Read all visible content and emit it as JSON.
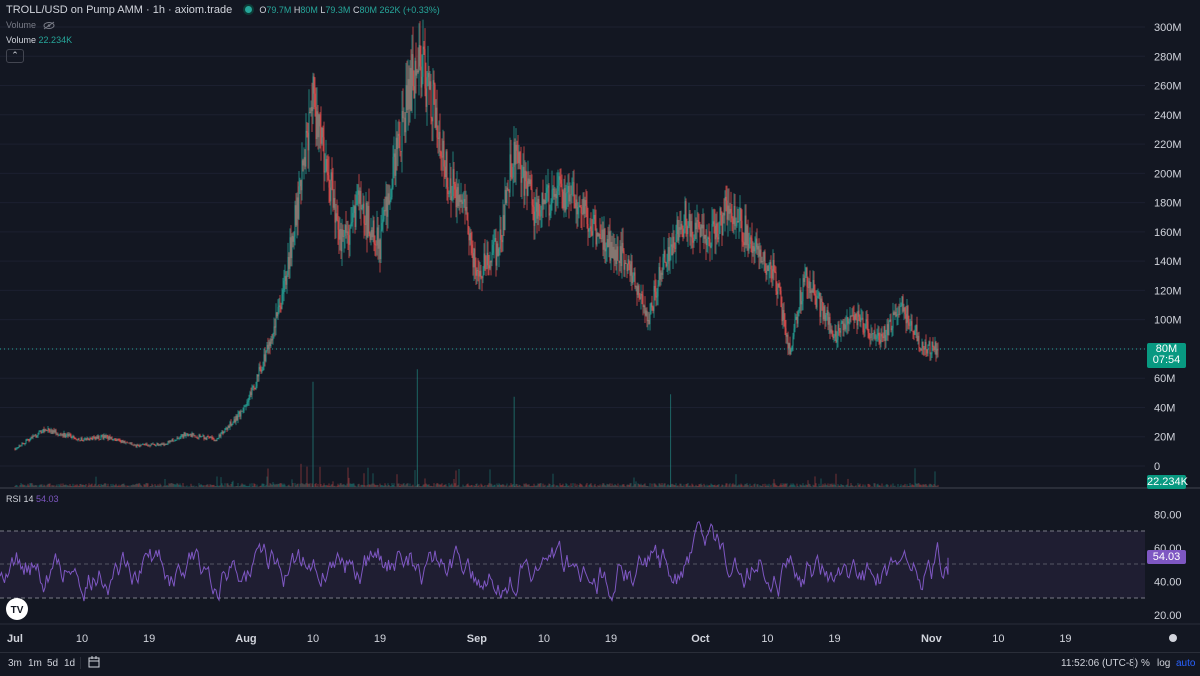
{
  "header": {
    "symbol": "TROLL/USD on Pump AMM · 1h · axiom.trade",
    "open_label": "O",
    "open": "79.7M",
    "high_label": "H",
    "high": "80M",
    "low_label": "L",
    "low": "79.3M",
    "close_label": "C",
    "close": "80M",
    "change": "262K (+0.33%)",
    "volume_label": "Volume",
    "volume_value": "22.234K",
    "rsi_label": "RSI 14",
    "rsi_value": "54.03"
  },
  "price_tag": {
    "price": "80M",
    "countdown": "07:54"
  },
  "volume_tag": "22.234K",
  "rsi_tag": "54.03",
  "price_axis_labels": [
    "300M",
    "280M",
    "260M",
    "240M",
    "220M",
    "200M",
    "180M",
    "160M",
    "140M",
    "120M",
    "100M",
    "60M",
    "40M",
    "20M",
    "0"
  ],
  "rsi_axis_labels": [
    "80.00",
    "60.00",
    "40.00",
    "20.00"
  ],
  "time_axis_labels": [
    "Jul",
    "10",
    "19",
    "Aug",
    "10",
    "19",
    "Sep",
    "10",
    "19",
    "Oct",
    "10",
    "19",
    "Nov",
    "10",
    "19"
  ],
  "bottom_bar": {
    "ranges": [
      "3m",
      "1m",
      "5d",
      "1d"
    ],
    "time": "11:52:06 (UTC-8)",
    "percent": "%",
    "log": "log",
    "auto": "auto"
  },
  "colors": {
    "background": "#131722",
    "up": "#26a69a",
    "down": "#ef5350",
    "rsi_line": "#7e57c2",
    "rsi_band": "#2a2540",
    "price_tag": "#089981",
    "auto_active": "#2962ff"
  },
  "chart_data": [
    {
      "type": "candlestick",
      "timeframe": "1h",
      "x_range": [
        "2024-07-01",
        "2024-11-03"
      ],
      "ylim": [
        0,
        300000000
      ],
      "price_path": [
        {
          "date": "2024-07-01",
          "price": 12000000
        },
        {
          "date": "2024-07-05",
          "price": 25000000
        },
        {
          "date": "2024-07-10",
          "price": 18000000
        },
        {
          "date": "2024-07-13",
          "price": 20000000
        },
        {
          "date": "2024-07-17",
          "price": 14000000
        },
        {
          "date": "2024-07-21",
          "price": 15000000
        },
        {
          "date": "2024-07-24",
          "price": 22000000
        },
        {
          "date": "2024-07-28",
          "price": 18000000
        },
        {
          "date": "2024-08-01",
          "price": 40000000
        },
        {
          "date": "2024-08-04",
          "price": 80000000
        },
        {
          "date": "2024-08-06",
          "price": 120000000
        },
        {
          "date": "2024-08-08",
          "price": 180000000
        },
        {
          "date": "2024-08-10",
          "price": 250000000
        },
        {
          "date": "2024-08-12",
          "price": 200000000
        },
        {
          "date": "2024-08-14",
          "price": 150000000
        },
        {
          "date": "2024-08-16",
          "price": 180000000
        },
        {
          "date": "2024-08-19",
          "price": 150000000
        },
        {
          "date": "2024-08-21",
          "price": 210000000
        },
        {
          "date": "2024-08-24",
          "price": 280000000
        },
        {
          "date": "2024-08-26",
          "price": 250000000
        },
        {
          "date": "2024-08-28",
          "price": 200000000
        },
        {
          "date": "2024-08-30",
          "price": 180000000
        },
        {
          "date": "2024-09-01",
          "price": 130000000
        },
        {
          "date": "2024-09-04",
          "price": 150000000
        },
        {
          "date": "2024-09-06",
          "price": 220000000
        },
        {
          "date": "2024-09-09",
          "price": 170000000
        },
        {
          "date": "2024-09-12",
          "price": 190000000
        },
        {
          "date": "2024-09-15",
          "price": 180000000
        },
        {
          "date": "2024-09-17",
          "price": 160000000
        },
        {
          "date": "2024-09-21",
          "price": 140000000
        },
        {
          "date": "2024-09-24",
          "price": 100000000
        },
        {
          "date": "2024-09-26",
          "price": 140000000
        },
        {
          "date": "2024-09-29",
          "price": 170000000
        },
        {
          "date": "2024-10-02",
          "price": 150000000
        },
        {
          "date": "2024-10-05",
          "price": 180000000
        },
        {
          "date": "2024-10-08",
          "price": 150000000
        },
        {
          "date": "2024-10-11",
          "price": 130000000
        },
        {
          "date": "2024-10-13",
          "price": 80000000
        },
        {
          "date": "2024-10-15",
          "price": 130000000
        },
        {
          "date": "2024-10-19",
          "price": 90000000
        },
        {
          "date": "2024-10-22",
          "price": 100000000
        },
        {
          "date": "2024-10-25",
          "price": 85000000
        },
        {
          "date": "2024-10-28",
          "price": 110000000
        },
        {
          "date": "2024-10-31",
          "price": 80000000
        },
        {
          "date": "2024-11-02",
          "price": 80000000
        }
      ],
      "last_price": 80000000
    },
    {
      "type": "bar",
      "name": "Volume",
      "last_value": "22.234K",
      "spikes": [
        {
          "date": "2024-08-10",
          "relative": 0.85
        },
        {
          "date": "2024-08-24",
          "relative": 0.95
        },
        {
          "date": "2024-09-06",
          "relative": 0.73
        },
        {
          "date": "2024-09-27",
          "relative": 0.75
        }
      ]
    },
    {
      "type": "line",
      "name": "RSI 14",
      "ylim": [
        15,
        88
      ],
      "levels": [
        70,
        50,
        30
      ],
      "last_value": 54.03,
      "range_observed": [
        20,
        87
      ]
    }
  ]
}
